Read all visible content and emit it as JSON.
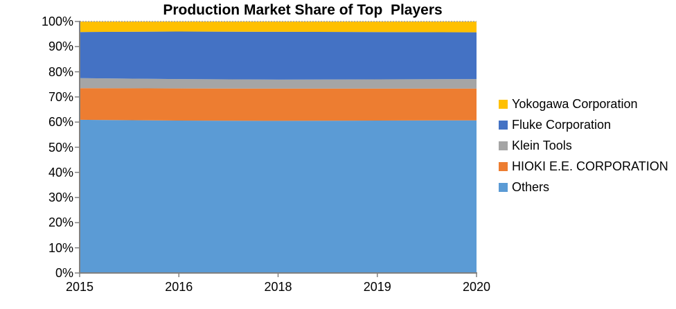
{
  "title": "Production Market Share of Top  Players",
  "chart_data": {
    "type": "area",
    "stacked": true,
    "percent_stacked": true,
    "title": "Production Market Share of Top  Players",
    "xlabel": "",
    "ylabel": "",
    "ylim": [
      0,
      100
    ],
    "grid": false,
    "top_border_style": "dotted",
    "axis_color": "#808080",
    "gridline_color": "#9e9e9e",
    "categories": [
      "2015",
      "2016",
      "2018",
      "2019",
      "2020"
    ],
    "y_ticks": [
      "0%",
      "10%",
      "20%",
      "30%",
      "40%",
      "50%",
      "60%",
      "70%",
      "80%",
      "90%",
      "100%"
    ],
    "legend_position": "right",
    "series": [
      {
        "name": "Yokogawa Corporation",
        "color": "#FFC000",
        "values": [
          4.2,
          4.0,
          4.1,
          4.2,
          4.3
        ]
      },
      {
        "name": "Fluke Corporation",
        "color": "#4472C4",
        "values": [
          18.3,
          18.9,
          19.0,
          18.8,
          18.6
        ]
      },
      {
        "name": "Klein Tools",
        "color": "#A5A5A5",
        "values": [
          4.0,
          3.7,
          3.6,
          3.7,
          3.8
        ]
      },
      {
        "name": "HIOKI E.E. CORPORATION",
        "color": "#ED7D31",
        "values": [
          12.6,
          12.8,
          12.8,
          12.7,
          12.6
        ]
      },
      {
        "name": "Others",
        "color": "#5B9BD5",
        "values": [
          60.9,
          60.6,
          60.5,
          60.6,
          60.7
        ]
      }
    ]
  }
}
